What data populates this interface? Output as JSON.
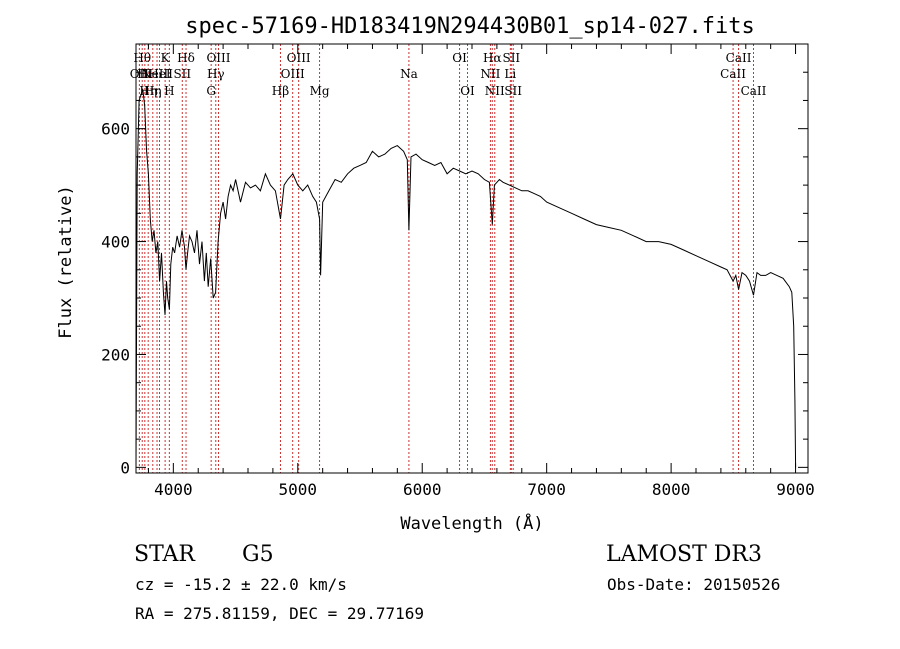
{
  "chart_data": {
    "type": "line",
    "title": "spec-57169-HD183419N294430B01_sp14-027.fits",
    "xlabel": "Wavelength (Å)",
    "ylabel": "Flux (relative)",
    "xlim": [
      3700,
      9100
    ],
    "ylim": [
      -10,
      750
    ],
    "x_ticks": [
      4000,
      5000,
      6000,
      7000,
      8000,
      9000
    ],
    "y_ticks": [
      0,
      200,
      400,
      600
    ],
    "grid": false,
    "line_color": "#000000",
    "marker_color": "#cc3333",
    "series": [
      {
        "x": [
          3700,
          3710,
          3725,
          3740,
          3755,
          3770,
          3785,
          3800,
          3815,
          3830,
          3845,
          3860,
          3875,
          3890,
          3905,
          3920,
          3933,
          3945,
          3955,
          3968,
          3980,
          3995,
          4010,
          4030,
          4050,
          4070,
          4090,
          4102,
          4115,
          4130,
          4150,
          4170,
          4190,
          4210,
          4230,
          4250,
          4265,
          4280,
          4300,
          4320,
          4340,
          4360,
          4380,
          4400,
          4420,
          4440,
          4460,
          4480,
          4500,
          4540,
          4580,
          4620,
          4660,
          4700,
          4740,
          4780,
          4820,
          4861,
          4890,
          4920,
          4960,
          5000,
          5040,
          5080,
          5120,
          5150,
          5175,
          5183,
          5200,
          5250,
          5300,
          5350,
          5400,
          5450,
          5500,
          5550,
          5600,
          5650,
          5700,
          5750,
          5800,
          5850,
          5880,
          5893,
          5910,
          5950,
          6000,
          6050,
          6100,
          6150,
          6200,
          6250,
          6300,
          6350,
          6400,
          6450,
          6500,
          6540,
          6563,
          6580,
          6620,
          6650,
          6700,
          6750,
          6800,
          6850,
          6900,
          6950,
          7000,
          7100,
          7200,
          7300,
          7400,
          7500,
          7600,
          7700,
          7800,
          7900,
          8000,
          8100,
          8200,
          8300,
          8400,
          8450,
          8498,
          8520,
          8542,
          8570,
          8600,
          8630,
          8662,
          8690,
          8720,
          8760,
          8800,
          8850,
          8900,
          8950,
          8970,
          8985,
          8995,
          9000
        ],
        "y": [
          0,
          520,
          650,
          660,
          670,
          640,
          560,
          520,
          440,
          400,
          420,
          380,
          400,
          330,
          380,
          310,
          270,
          330,
          300,
          280,
          360,
          390,
          380,
          410,
          390,
          420,
          390,
          350,
          380,
          410,
          400,
          380,
          420,
          360,
          400,
          330,
          380,
          320,
          370,
          300,
          310,
          400,
          450,
          470,
          440,
          480,
          500,
          490,
          510,
          470,
          505,
          495,
          500,
          490,
          520,
          500,
          490,
          440,
          500,
          510,
          520,
          500,
          490,
          500,
          480,
          470,
          440,
          340,
          470,
          490,
          510,
          505,
          520,
          530,
          535,
          540,
          560,
          550,
          555,
          565,
          570,
          560,
          545,
          420,
          550,
          555,
          545,
          540,
          535,
          540,
          520,
          530,
          525,
          520,
          525,
          520,
          510,
          505,
          430,
          500,
          510,
          505,
          500,
          495,
          490,
          490,
          485,
          480,
          470,
          460,
          450,
          440,
          430,
          425,
          420,
          410,
          400,
          400,
          395,
          385,
          375,
          365,
          355,
          350,
          330,
          340,
          315,
          345,
          340,
          330,
          305,
          345,
          340,
          340,
          345,
          340,
          335,
          320,
          310,
          250,
          120,
          0
        ]
      }
    ],
    "line_markers": [
      {
        "x": 3727,
        "labels": [
          "OII"
        ],
        "rows": [
          2
        ]
      },
      {
        "x": 3750,
        "labels": [
          "Hθ"
        ],
        "rows": [
          1
        ]
      },
      {
        "x": 3771,
        "labels": [
          "Hι"
        ],
        "rows": [
          2
        ]
      },
      {
        "x": 3798,
        "labels": [
          "Hη"
        ],
        "rows": [
          3
        ]
      },
      {
        "x": 3835,
        "labels": [
          "Hη"
        ],
        "rows": [
          3
        ]
      },
      {
        "x": 3869,
        "labels": [
          "NeIII"
        ],
        "rows": [
          2
        ]
      },
      {
        "x": 3889,
        "labels": [
          "HeI"
        ],
        "rows": [
          2
        ]
      },
      {
        "x": 3934,
        "labels": [
          "K"
        ],
        "rows": [
          1
        ]
      },
      {
        "x": 3968,
        "labels": [
          "H"
        ],
        "rows": [
          3
        ]
      },
      {
        "x": 4072,
        "labels": [
          "SII"
        ],
        "rows": [
          2
        ]
      },
      {
        "x": 4102,
        "labels": [
          "Hδ"
        ],
        "rows": [
          1
        ]
      },
      {
        "x": 4304,
        "labels": [
          "G"
        ],
        "rows": [
          3
        ]
      },
      {
        "x": 4341,
        "labels": [
          "Hγ"
        ],
        "rows": [
          2
        ]
      },
      {
        "x": 4363,
        "labels": [
          "OIII"
        ],
        "rows": [
          1
        ]
      },
      {
        "x": 4861,
        "labels": [
          "Hβ"
        ],
        "rows": [
          3
        ]
      },
      {
        "x": 4959,
        "labels": [
          "OIII"
        ],
        "rows": [
          2
        ]
      },
      {
        "x": 5007,
        "labels": [
          "OIII"
        ],
        "rows": [
          1
        ]
      },
      {
        "x": 5175,
        "labels": [
          "Mg"
        ],
        "rows": [
          3
        ]
      },
      {
        "x": 5893,
        "labels": [
          "Na"
        ],
        "rows": [
          2
        ]
      },
      {
        "x": 6300,
        "labels": [
          "OI"
        ],
        "rows": [
          1
        ]
      },
      {
        "x": 6364,
        "labels": [
          "OI"
        ],
        "rows": [
          3
        ]
      },
      {
        "x": 6548,
        "labels": [
          "NII"
        ],
        "rows": [
          2
        ]
      },
      {
        "x": 6563,
        "labels": [
          "Hα"
        ],
        "rows": [
          1
        ]
      },
      {
        "x": 6583,
        "labels": [
          "NII"
        ],
        "rows": [
          3
        ]
      },
      {
        "x": 6708,
        "labels": [
          "Li"
        ],
        "rows": [
          2
        ]
      },
      {
        "x": 6716,
        "labels": [
          "SII"
        ],
        "rows": [
          1
        ]
      },
      {
        "x": 6731,
        "labels": [
          "SII"
        ],
        "rows": [
          3
        ]
      },
      {
        "x": 8498,
        "labels": [
          "CaII"
        ],
        "rows": [
          2
        ]
      },
      {
        "x": 8542,
        "labels": [
          "CaII"
        ],
        "rows": [
          1
        ]
      },
      {
        "x": 8662,
        "labels": [
          "CaII"
        ],
        "rows": [
          3
        ]
      }
    ]
  },
  "info": {
    "class_label": "STAR",
    "subclass": "G5",
    "survey": "LAMOST DR3",
    "redshift": "cz = -15.2 ± 22.0 km/s",
    "obs_date": "Obs-Date: 20150526",
    "coords": "RA = 275.81159, DEC =  29.77169"
  }
}
